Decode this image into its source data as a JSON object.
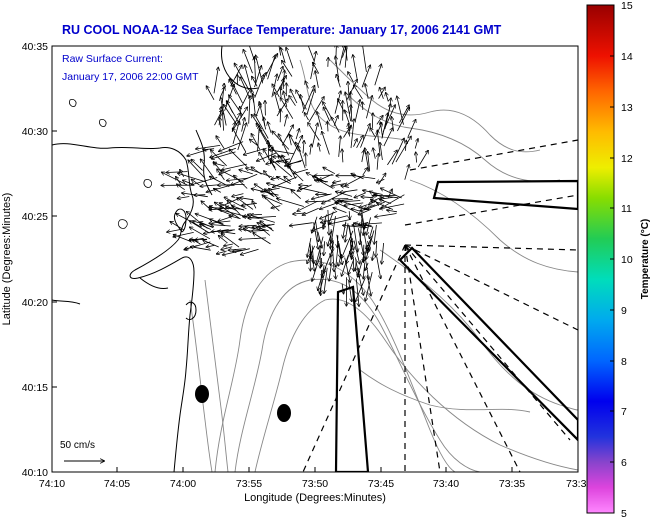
{
  "title": "RU COOL  NOAA-12  Sea Surface Temperature:  January 17, 2006 2141 GMT",
  "legend": {
    "line1": "Raw Surface Current:",
    "line2": "January 17, 2006 22:00 GMT"
  },
  "axes": {
    "xlabel": "Longitude (Degrees:Minutes)",
    "ylabel": "Latitude (Degrees:Minutes)",
    "xticks": [
      "74:10",
      "74:05",
      "74:00",
      "73:55",
      "73:50",
      "73:45",
      "73:40",
      "73:35",
      "73:3"
    ],
    "yticks": [
      "40:35",
      "40:30",
      "40:25",
      "40:20",
      "40:15",
      "40:10"
    ]
  },
  "scale_label": "50 cm/s",
  "colorbar": {
    "label": "Temperature (°C)",
    "ticks": [
      "15",
      "14",
      "13",
      "12",
      "11",
      "10",
      "9",
      "8",
      "7",
      "6",
      "5"
    ],
    "min": 5,
    "max": 15
  },
  "colors": {
    "title": "#0000cc",
    "frame": "#000000",
    "land_contour": "#000000",
    "bathymetry": "#888888"
  }
}
